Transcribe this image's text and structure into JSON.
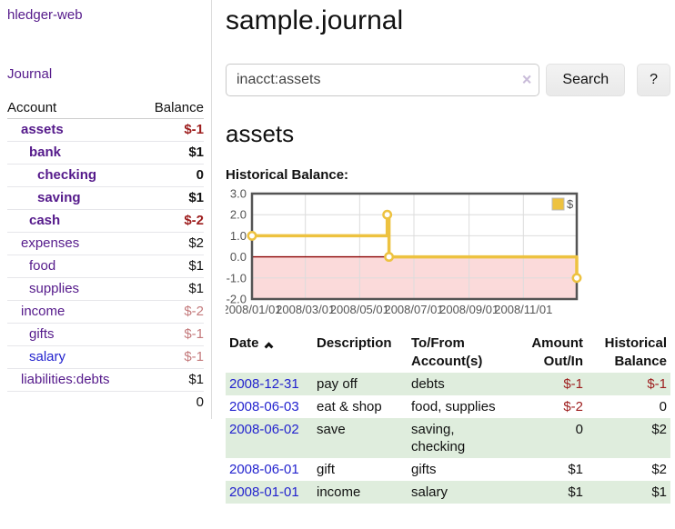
{
  "colors": {
    "link_purple": "#551a8b",
    "link_blue": "#2323ce",
    "negative": "#9d1d1d",
    "negative_soft": "#c47a7c",
    "row_stripe_green": "#dfeddd",
    "chart_gold": "#edc240",
    "chart_negative_fill": "#fbdada",
    "chart_zero_line": "#8b0000",
    "chart_border": "#545454",
    "chart_grid": "#dcdcdc"
  },
  "sidebar": {
    "app_title": "hledger-web",
    "journal_link": "Journal",
    "accounts": {
      "header_account": "Account",
      "header_balance": "Balance",
      "rows": [
        {
          "name": "assets",
          "balance": "$-1",
          "indent": 1,
          "emphasis": true,
          "balance_tone": "negative",
          "link_tone": "purple"
        },
        {
          "name": "bank",
          "balance": "$1",
          "indent": 2,
          "emphasis": true,
          "balance_tone": "normal",
          "link_tone": "purple"
        },
        {
          "name": "checking",
          "balance": "0",
          "indent": 3,
          "emphasis": true,
          "balance_tone": "normal",
          "link_tone": "purple"
        },
        {
          "name": "saving",
          "balance": "$1",
          "indent": 3,
          "emphasis": true,
          "balance_tone": "normal",
          "link_tone": "purple"
        },
        {
          "name": "cash",
          "balance": "$-2",
          "indent": 2,
          "emphasis": true,
          "balance_tone": "negative",
          "link_tone": "purple"
        },
        {
          "name": "expenses",
          "balance": "$2",
          "indent": 1,
          "emphasis": false,
          "balance_tone": "normal",
          "link_tone": "purple"
        },
        {
          "name": "food",
          "balance": "$1",
          "indent": 2,
          "emphasis": false,
          "balance_tone": "normal",
          "link_tone": "purple"
        },
        {
          "name": "supplies",
          "balance": "$1",
          "indent": 2,
          "emphasis": false,
          "balance_tone": "normal",
          "link_tone": "purple"
        },
        {
          "name": "income",
          "balance": "$-2",
          "indent": 1,
          "emphasis": false,
          "balance_tone": "negative_soft",
          "link_tone": "purple"
        },
        {
          "name": "gifts",
          "balance": "$-1",
          "indent": 2,
          "emphasis": false,
          "balance_tone": "negative_soft",
          "link_tone": "purple"
        },
        {
          "name": "salary",
          "balance": "$-1",
          "indent": 2,
          "emphasis": false,
          "balance_tone": "negative_soft",
          "link_tone": "blue"
        },
        {
          "name": "liabilities:debts",
          "balance": "$1",
          "indent": 1,
          "emphasis": false,
          "balance_tone": "normal",
          "link_tone": "purple"
        }
      ],
      "total": "0"
    }
  },
  "main": {
    "title": "sample.journal",
    "search": {
      "value": "inacct:assets",
      "clear_label": "×",
      "button": "Search",
      "help_button": "?"
    },
    "account_heading": "assets",
    "chart_title": "Historical Balance:"
  },
  "chart_data": {
    "type": "line",
    "step": true,
    "title": "Historical Balance:",
    "legend": [
      {
        "label": "$",
        "color": "#edc240"
      }
    ],
    "legend_position": "top-right",
    "series": [
      {
        "name": "$",
        "points": [
          {
            "x": "2008-01-01",
            "y": 1
          },
          {
            "x": "2008-06-01",
            "y": 2
          },
          {
            "x": "2008-06-03",
            "y": 0
          },
          {
            "x": "2008-12-31",
            "y": -1
          }
        ]
      }
    ],
    "x_range": [
      "2008-01-01",
      "2008-12-31"
    ],
    "x_ticks": [
      "2008/01/01",
      "2008/03/01",
      "2008/05/01",
      "2008/07/01",
      "2008/09/01",
      "2008/11/01"
    ],
    "y_ticks": [
      3.0,
      2.0,
      1.0,
      0.0,
      -1.0,
      -2.0
    ],
    "ylim": [
      -2,
      3
    ],
    "grid": true,
    "zero_line": true,
    "negative_region_shaded": true
  },
  "register": {
    "headers": {
      "date": "Date",
      "description": "Description",
      "accounts": "To/From Account(s)",
      "amount": "Amount Out/In",
      "balance": "Historical Balance"
    },
    "sort": {
      "column": "date",
      "indicator": "chevron-up"
    },
    "rows": [
      {
        "date": "2008-12-31",
        "description": "pay off",
        "accounts": "debts",
        "amount": "$-1",
        "balance": "$-1",
        "amount_tone": "negative",
        "balance_tone": "negative"
      },
      {
        "date": "2008-06-03",
        "description": "eat & shop",
        "accounts": "food, supplies",
        "amount": "$-2",
        "balance": "0",
        "amount_tone": "negative",
        "balance_tone": "normal"
      },
      {
        "date": "2008-06-02",
        "description": "save",
        "accounts": "saving, checking",
        "amount": "0",
        "balance": "$2",
        "amount_tone": "normal",
        "balance_tone": "normal"
      },
      {
        "date": "2008-06-01",
        "description": "gift",
        "accounts": "gifts",
        "amount": "$1",
        "balance": "$2",
        "amount_tone": "normal",
        "balance_tone": "normal"
      },
      {
        "date": "2008-01-01",
        "description": "income",
        "accounts": "salary",
        "amount": "$1",
        "balance": "$1",
        "amount_tone": "normal",
        "balance_tone": "normal"
      }
    ]
  }
}
